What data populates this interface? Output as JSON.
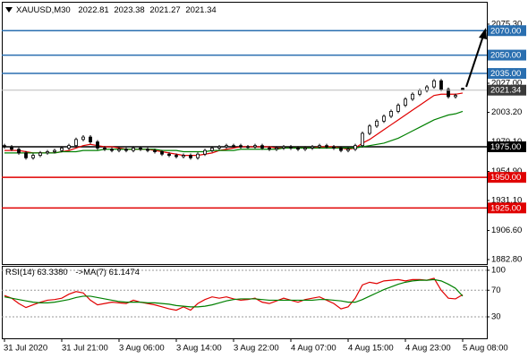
{
  "chart_data": [
    {
      "type": "candlestick",
      "symbol": "XAUUSD,M30",
      "categories": [
        "31 Jul 2020",
        null,
        null,
        null,
        null,
        null,
        null,
        null,
        "31 Jul 21:00",
        null,
        null,
        null,
        null,
        null,
        null,
        null,
        "3 Aug 06:00",
        null,
        null,
        null,
        null,
        null,
        null,
        null,
        "3 Aug 14:00",
        null,
        null,
        null,
        null,
        null,
        null,
        null,
        "3 Aug 22:00",
        null,
        null,
        null,
        null,
        null,
        null,
        null,
        "4 Aug 07:00",
        null,
        null,
        null,
        null,
        null,
        null,
        null,
        "4 Aug 15:00",
        null,
        null,
        null,
        null,
        null,
        null,
        null,
        "4 Aug 23:00",
        null,
        null,
        null,
        null,
        null,
        null,
        null,
        "5 Aug 08:00"
      ],
      "open": [
        1976,
        1975,
        1973,
        1970,
        1966,
        1968,
        1970,
        1971,
        1972,
        1974,
        1976,
        1981,
        1983,
        1979,
        1974,
        1973,
        1972,
        1973,
        1972,
        1974,
        1973,
        1972,
        1971,
        1969,
        1968,
        1967,
        1968,
        1966,
        1969,
        1972,
        1974,
        1975,
        1976,
        1976,
        1975,
        1975,
        1976,
        1974,
        1973,
        1974,
        1975,
        1974,
        1973,
        1974,
        1975,
        1976,
        1975,
        1974,
        1972,
        1973,
        1976,
        1986,
        1992,
        1996,
        2000,
        2004,
        2009,
        2014,
        2018,
        2021,
        2024,
        2029,
        2022,
        2016,
        2022.81
      ],
      "high": [
        1977.5,
        1976.5,
        1974.5,
        1971.5,
        1969.5,
        1971.5,
        1972.5,
        1973.5,
        1975.5,
        1977.5,
        1982.5,
        1984.5,
        1984.5,
        1980.5,
        1975.5,
        1974.5,
        1974.5,
        1974.5,
        1975.5,
        1975.5,
        1974.5,
        1973.5,
        1972.5,
        1970.5,
        1969.5,
        1969.5,
        1969.5,
        1970.5,
        1973.5,
        1975.5,
        1976.5,
        1977.5,
        1977.5,
        1977.5,
        1976.5,
        1977.5,
        1977.5,
        1975.5,
        1975.5,
        1976.5,
        1976.5,
        1975.5,
        1975.5,
        1976.5,
        1977.5,
        1977.5,
        1976.5,
        1975.5,
        1974.5,
        1977.5,
        1987.5,
        1993.5,
        1997.5,
        2001.5,
        2005.5,
        2010.5,
        2015.5,
        2019.5,
        2022.5,
        2025.5,
        2030.5,
        2030.5,
        2023.5,
        2018.5,
        2023.38
      ],
      "low": [
        1973.5,
        1971.5,
        1968.5,
        1964.5,
        1964.5,
        1966.5,
        1968.5,
        1969.5,
        1970.5,
        1972.5,
        1974.5,
        1979.5,
        1977.5,
        1972.5,
        1971.5,
        1970.5,
        1970.5,
        1970.5,
        1970.5,
        1971.5,
        1970.5,
        1969.5,
        1967.5,
        1966.5,
        1965.5,
        1965.5,
        1964.5,
        1964.5,
        1967.5,
        1970.5,
        1972.5,
        1973.5,
        1974.5,
        1973.5,
        1973.5,
        1973.5,
        1972.5,
        1971.5,
        1971.5,
        1972.5,
        1972.5,
        1971.5,
        1971.5,
        1972.5,
        1973.5,
        1973.5,
        1972.5,
        1970.5,
        1970.5,
        1971.5,
        1974.5,
        1984.5,
        1990.5,
        1994.5,
        1998.5,
        2002.5,
        2007.5,
        2012.5,
        2016.5,
        2019.5,
        2022.5,
        2020.5,
        2014.5,
        2014.5,
        2021.27
      ],
      "close": [
        1975,
        1973,
        1970,
        1966,
        1968,
        1970,
        1971,
        1972,
        1974,
        1976,
        1981,
        1983,
        1979,
        1974,
        1973,
        1972,
        1973,
        1972,
        1974,
        1973,
        1972,
        1971,
        1969,
        1968,
        1967,
        1968,
        1966,
        1969,
        1972,
        1974,
        1975,
        1976,
        1976,
        1975,
        1975,
        1976,
        1974,
        1973,
        1974,
        1975,
        1974,
        1973,
        1974,
        1975,
        1976,
        1975,
        1974,
        1972,
        1973,
        1976,
        1986,
        1992,
        1996,
        2000,
        2004,
        2009,
        2014,
        2018,
        2021,
        2024,
        2029,
        2022,
        2016,
        2017,
        2021.34
      ],
      "series": [
        {
          "color": "#e00000",
          "values": [
            1972,
            1972,
            1972,
            1971,
            1970,
            1970,
            1970,
            1970,
            1971,
            1972,
            1974,
            1976,
            1977,
            1976,
            1975,
            1975,
            1974,
            1973,
            1973,
            1973,
            1973,
            1972,
            1971,
            1970,
            1969,
            1968,
            1968,
            1968,
            1969,
            1970,
            1972,
            1973,
            1974,
            1975,
            1975,
            1975,
            1975,
            1975,
            1974,
            1974,
            1974,
            1974,
            1974,
            1974,
            1975,
            1975,
            1975,
            1974,
            1973,
            1974,
            1978,
            1981,
            1985,
            1989,
            1993,
            1997,
            2001,
            2005,
            2009,
            2013,
            2017,
            2018,
            2018,
            2018,
            2019
          ]
        },
        {
          "color": "#008000",
          "values": [
            1970,
            1970,
            1970,
            1970,
            1970,
            1970,
            1970,
            1970,
            1971,
            1971,
            1971,
            1972,
            1972,
            1972,
            1973,
            1973,
            1973,
            1973,
            1973,
            1973,
            1973,
            1973,
            1972,
            1972,
            1972,
            1971,
            1971,
            1971,
            1971,
            1972,
            1972,
            1972,
            1972,
            1973,
            1973,
            1973,
            1973,
            1973,
            1973,
            1974,
            1974,
            1974,
            1974,
            1974,
            1974,
            1974,
            1974,
            1974,
            1974,
            1974,
            1975,
            1976,
            1977,
            1978,
            1980,
            1982,
            1985,
            1988,
            1991,
            1994,
            1997,
            1999,
            2001,
            2002,
            2004
          ]
        }
      ],
      "ylim": [
        1878.4,
        2093.6
      ],
      "yticks": [
        {
          "value": 2075.3,
          "label": "2075.30"
        },
        {
          "value": 2027,
          "label": "2027.00"
        },
        {
          "value": 2003.2,
          "label": "2003.20"
        },
        {
          "value": 1979.1,
          "label": "1979.10"
        },
        {
          "value": 1954.9,
          "label": "1954.90"
        },
        {
          "value": 1931.1,
          "label": "1931.10"
        },
        {
          "value": 1906.6,
          "label": "1906.60"
        },
        {
          "value": 1882.8,
          "label": "1882.80"
        }
      ],
      "levels": [
        {
          "value": 2070,
          "label": "2070.00",
          "color": "#2a6fb0"
        },
        {
          "value": 2050,
          "label": "2050.00",
          "color": "#2a6fb0"
        },
        {
          "value": 2035,
          "label": "2035.00",
          "color": "#2a6fb0"
        },
        {
          "value": 1975,
          "label": "1975.00",
          "color": "#000000"
        },
        {
          "value": 1950,
          "label": "1950.00",
          "color": "#e00000"
        },
        {
          "value": 1925,
          "label": "1925.00",
          "color": "#e00000"
        }
      ]
    },
    {
      "type": "line",
      "title": "RSI(14) 63.3380",
      "subtitle": "->MA(7) 61.1474",
      "series": [
        {
          "color": "#e00000",
          "values": [
            62,
            58,
            50,
            44,
            48,
            52,
            55,
            56,
            58,
            64,
            68,
            66,
            55,
            48,
            50,
            52,
            51,
            50,
            55,
            52,
            50,
            48,
            45,
            42,
            40,
            45,
            40,
            50,
            56,
            60,
            58,
            60,
            57,
            55,
            56,
            58,
            52,
            50,
            54,
            58,
            55,
            52,
            56,
            58,
            60,
            55,
            50,
            42,
            45,
            58,
            78,
            82,
            80,
            84,
            85,
            86,
            84,
            86,
            86,
            85,
            88,
            70,
            58,
            57,
            63.34
          ]
        },
        {
          "color": "#008000",
          "values": [
            60,
            58,
            56,
            54,
            52,
            51,
            51,
            52,
            54,
            56,
            59,
            61,
            61,
            59,
            57,
            55,
            53,
            52,
            52,
            52,
            51,
            51,
            50,
            49,
            47,
            46,
            45,
            45,
            46,
            48,
            51,
            54,
            56,
            57,
            57,
            57,
            56,
            55,
            55,
            55,
            55,
            55,
            55,
            55,
            56,
            56,
            55,
            54,
            52,
            52,
            56,
            61,
            66,
            71,
            75,
            79,
            82,
            84,
            85,
            85,
            86,
            84,
            79,
            73,
            61.15
          ]
        }
      ],
      "ylim": [
        -2.3,
        106.7
      ],
      "yticks": [
        100,
        70,
        30
      ],
      "grid": true
    }
  ]
}
